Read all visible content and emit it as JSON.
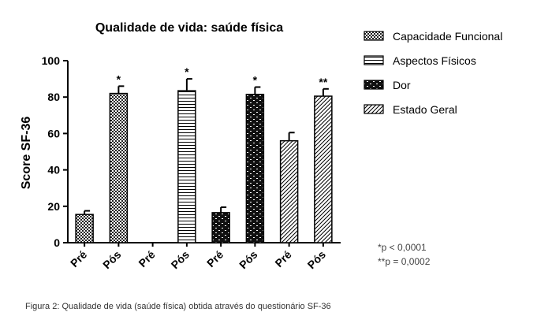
{
  "chart_data": {
    "type": "bar",
    "title": "Qualidade de vida: saúde física",
    "ylabel": "Score SF-36",
    "xlabel": "",
    "ylim": [
      0,
      100
    ],
    "yticks": [
      0,
      20,
      40,
      60,
      80,
      100
    ],
    "categories": [
      "Pré",
      "Pós",
      "Pré",
      "Pós",
      "Pré",
      "Pós",
      "Pré",
      "Pós"
    ],
    "bars": [
      {
        "category": "Pré",
        "series": "Capacidade Funcional",
        "value": 15.5,
        "error": 2,
        "sig": ""
      },
      {
        "category": "Pós",
        "series": "Capacidade Funcional",
        "value": 82,
        "error": 4,
        "sig": "*"
      },
      {
        "category": "Pré",
        "series": "Aspectos Físicos",
        "value": 0,
        "error": 0,
        "sig": ""
      },
      {
        "category": "Pós",
        "series": "Aspectos Físicos",
        "value": 83.5,
        "error": 6.5,
        "sig": "*"
      },
      {
        "category": "Pré",
        "series": "Dor",
        "value": 16.5,
        "error": 3,
        "sig": ""
      },
      {
        "category": "Pós",
        "series": "Dor",
        "value": 81.5,
        "error": 4,
        "sig": "*"
      },
      {
        "category": "Pré",
        "series": "Estado Geral",
        "value": 56,
        "error": 4.5,
        "sig": ""
      },
      {
        "category": "Pós",
        "series": "Estado Geral",
        "value": 80.5,
        "error": 4,
        "sig": "**"
      }
    ],
    "legend": [
      {
        "name": "Capacidade Funcional",
        "pattern": "checker"
      },
      {
        "name": "Aspectos Físicos",
        "pattern": "hlines"
      },
      {
        "name": "Dor",
        "pattern": "brick"
      },
      {
        "name": "Estado Geral",
        "pattern": "diagonal"
      }
    ],
    "legend_position": "right",
    "grid": false,
    "notes": [
      "*p < 0,0001",
      "**p = 0,0002"
    ]
  },
  "caption": "Figura 2: Qualidade de vida (saúde física) obtida através do questionário SF-36"
}
